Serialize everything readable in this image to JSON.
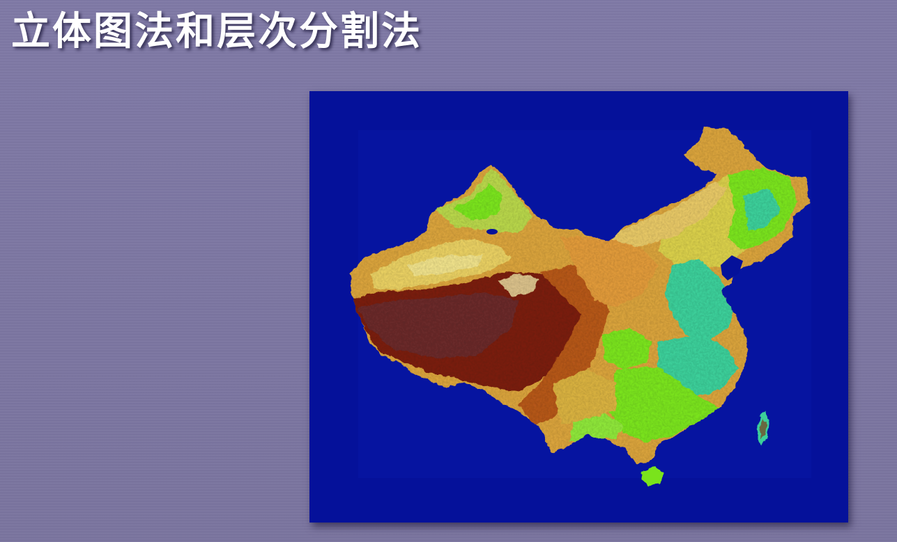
{
  "slide": {
    "title": "立体图法和层次分割法"
  },
  "map": {
    "colors": {
      "ocean": "#05119a",
      "high_plateau": "#7a1d08",
      "mountain": "#b5651d",
      "uplands": "#e2a33b",
      "basin": "#e9d46a",
      "lowland_green": "#7ae31f",
      "coastal_plain": "#3ccf9a"
    }
  }
}
